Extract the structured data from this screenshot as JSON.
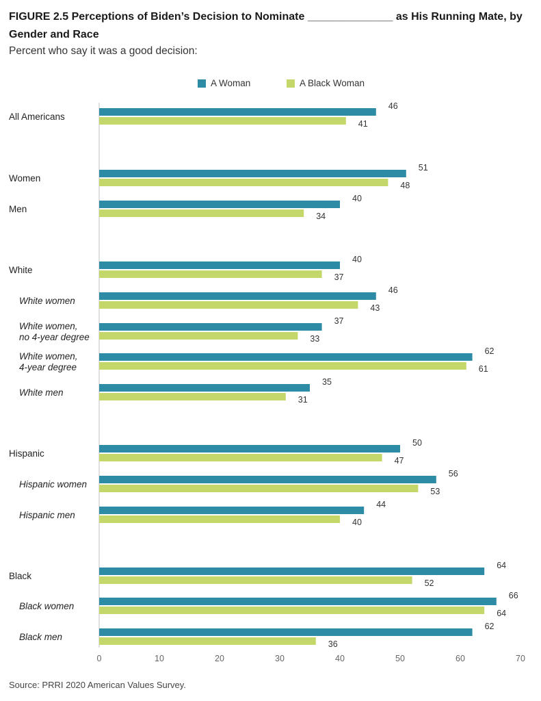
{
  "title": "FIGURE 2.5  Perceptions of Biden’s Decision to Nominate ______________ as His Running Mate, by Gender and Race",
  "subtitle": "Percent who say it was a good decision:",
  "source": "Source: PRRI 2020 American Values Survey.",
  "colors": {
    "woman": "#2e8ba6",
    "black_woman": "#c3d76a",
    "axis": "#cccccc"
  },
  "legend": [
    {
      "label": "A Woman",
      "color": "#2e8ba6"
    },
    {
      "label": "A Black Woman",
      "color": "#c3d76a"
    }
  ],
  "chart_data": {
    "type": "bar",
    "orientation": "horizontal",
    "title": "FIGURE 2.5  Perceptions of Biden’s Decision to Nominate ______________ as His Running Mate, by Gender and Race",
    "subtitle": "Percent who say it was a good decision:",
    "xlim": [
      0,
      70
    ],
    "xticks": [
      0,
      10,
      20,
      30,
      40,
      50,
      60,
      70
    ],
    "legend_position": "top-center",
    "grid": false,
    "categories": [
      {
        "label": [
          "All Americans"
        ],
        "italic": false
      },
      {
        "label": [
          "Women"
        ],
        "italic": false
      },
      {
        "label": [
          "Men"
        ],
        "italic": false
      },
      {
        "label": [
          "White"
        ],
        "italic": false
      },
      {
        "label": [
          "White women"
        ],
        "italic": true
      },
      {
        "label": [
          "White women,",
          "no 4-year degree"
        ],
        "italic": true
      },
      {
        "label": [
          "White women,",
          "4-year degree"
        ],
        "italic": true
      },
      {
        "label": [
          "White men"
        ],
        "italic": true
      },
      {
        "label": [
          "Hispanic"
        ],
        "italic": false
      },
      {
        "label": [
          "Hispanic women"
        ],
        "italic": true
      },
      {
        "label": [
          "Hispanic men"
        ],
        "italic": true
      },
      {
        "label": [
          "Black"
        ],
        "italic": false
      },
      {
        "label": [
          "Black women"
        ],
        "italic": true
      },
      {
        "label": [
          "Black men"
        ],
        "italic": true
      }
    ],
    "series": [
      {
        "name": "A Woman",
        "color": "#2e8ba6",
        "values": [
          46,
          51,
          40,
          40,
          46,
          37,
          62,
          35,
          50,
          56,
          44,
          64,
          66,
          62
        ]
      },
      {
        "name": "A Black Woman",
        "color": "#c3d76a",
        "values": [
          41,
          48,
          34,
          37,
          43,
          33,
          61,
          31,
          47,
          53,
          40,
          52,
          64,
          36
        ]
      }
    ]
  }
}
